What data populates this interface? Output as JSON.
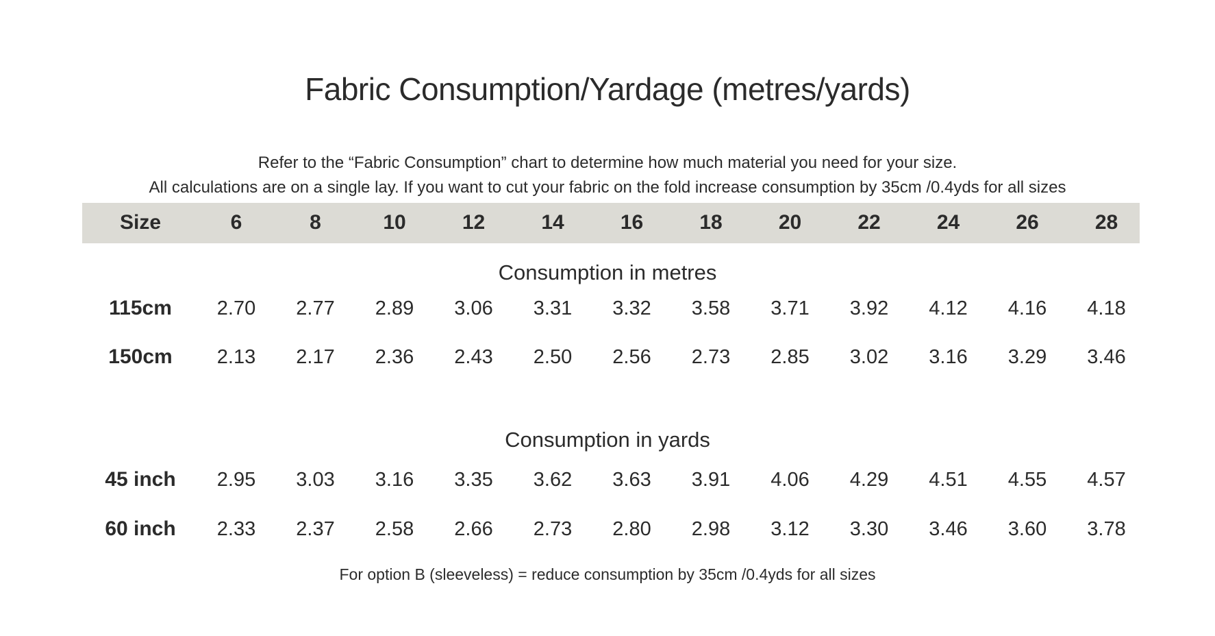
{
  "title": "Fabric Consumption/Yardage (metres/yards)",
  "intro": {
    "line1": "Refer to the “Fabric Consumption” chart to determine how much material you need for your size.",
    "line2": "All calculations are on a single lay. If you want to cut your fabric on the fold increase consumption by 35cm /0.4yds for all sizes"
  },
  "header": {
    "label": "Size",
    "sizes": [
      "6",
      "8",
      "10",
      "12",
      "14",
      "16",
      "18",
      "20",
      "22",
      "24",
      "26",
      "28"
    ]
  },
  "colors": {
    "header_background": "#dcdbd5",
    "text": "#2b2b2b"
  },
  "sections": [
    {
      "title": "Consumption in metres",
      "rows": [
        {
          "label": "115cm",
          "values": [
            "2.70",
            "2.77",
            "2.89",
            "3.06",
            "3.31",
            "3.32",
            "3.58",
            "3.71",
            "3.92",
            "4.12",
            "4.16",
            "4.18"
          ]
        },
        {
          "label": "150cm",
          "values": [
            "2.13",
            "2.17",
            "2.36",
            "2.43",
            "2.50",
            "2.56",
            "2.73",
            "2.85",
            "3.02",
            "3.16",
            "3.29",
            "3.46"
          ]
        }
      ]
    },
    {
      "title": "Consumption in yards",
      "rows": [
        {
          "label": "45 inch",
          "values": [
            "2.95",
            "3.03",
            "3.16",
            "3.35",
            "3.62",
            "3.63",
            "3.91",
            "4.06",
            "4.29",
            "4.51",
            "4.55",
            "4.57"
          ]
        },
        {
          "label": "60 inch",
          "values": [
            "2.33",
            "2.37",
            "2.58",
            "2.66",
            "2.73",
            "2.80",
            "2.98",
            "3.12",
            "3.30",
            "3.46",
            "3.60",
            "3.78"
          ]
        }
      ]
    }
  ],
  "footnote": "For option B (sleeveless) = reduce consumption by 35cm /0.4yds for all sizes"
}
